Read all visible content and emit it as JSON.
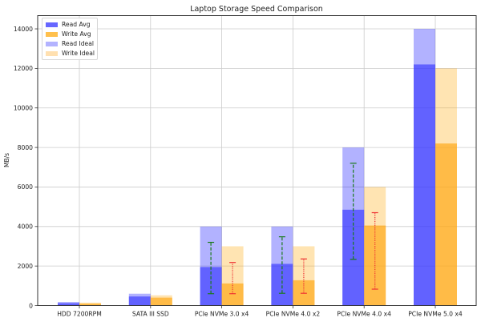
{
  "chart_data": {
    "type": "bar",
    "title": "Laptop Storage Speed Comparison",
    "xlabel": "",
    "ylabel": "MB/s",
    "ylim": [
      0,
      14670
    ],
    "yticks": [
      0,
      2000,
      4000,
      6000,
      8000,
      10000,
      12000,
      14000
    ],
    "grid": true,
    "legend_position": "upper left",
    "categories": [
      "HDD 7200RPM",
      "SATA III SSD",
      "PCIe NVMe 3.0 x4",
      "PCIe NVMe 4.0 x2",
      "PCIe NVMe 4.0 x4",
      "PCIe NVMe 5.0 x4"
    ],
    "series": [
      {
        "name": "Read Avg",
        "color": "#4040ff",
        "opacity": 0.7,
        "values": [
          120,
          460,
          1950,
          2110,
          4850,
          12200
        ]
      },
      {
        "name": "Write Avg",
        "color": "#ffaa1a",
        "opacity": 0.7,
        "values": [
          100,
          400,
          1120,
          1280,
          4050,
          8200
        ]
      },
      {
        "name": "Read Ideal",
        "color": "#0000ff",
        "opacity": 0.3,
        "values": [
          180,
          600,
          4000,
          4000,
          8000,
          14000
        ]
      },
      {
        "name": "Write Ideal",
        "color": "#ffa500",
        "opacity": 0.3,
        "values": [
          150,
          520,
          3000,
          3000,
          6000,
          12000
        ]
      }
    ],
    "error_bars": {
      "read": {
        "color": "#1a7a1a",
        "style": "dashed",
        "ranges": [
          null,
          null,
          [
            600,
            3200
          ],
          [
            620,
            3480
          ],
          [
            2340,
            7200
          ],
          null
        ]
      },
      "write": {
        "color": "#ee3333",
        "style": "dotted",
        "ranges": [
          null,
          null,
          [
            600,
            2180
          ],
          [
            620,
            2360
          ],
          [
            830,
            4700
          ],
          null
        ]
      }
    }
  },
  "legend": {
    "items": [
      {
        "label": "Read Avg",
        "color": "#6666ff"
      },
      {
        "label": "Write Avg",
        "color": "#ffc04d"
      },
      {
        "label": "Read Ideal",
        "color": "#b3b3ff"
      },
      {
        "label": "Write Ideal",
        "color": "#ffe0b0"
      }
    ]
  }
}
